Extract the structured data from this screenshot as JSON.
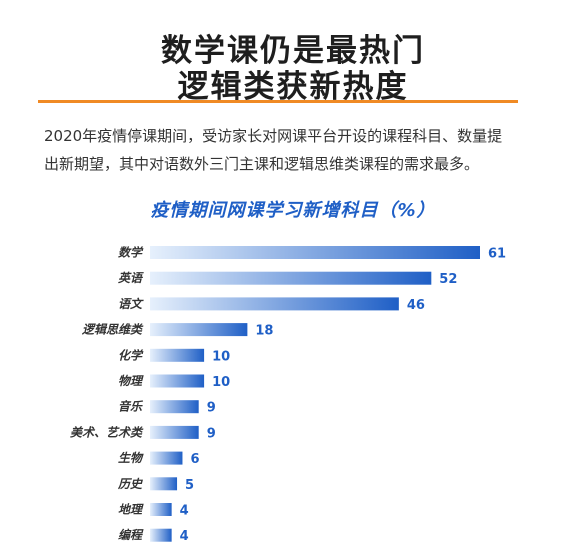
{
  "headline": {
    "line1": "数学课仍是最热门",
    "line2": "逻辑类获新热度"
  },
  "intro": {
    "line1": "2020年疫情停课期间，受访家长对网课平台开设的课程科目、数量提",
    "line2": "出新期望，其中对语数外三门主课和逻辑思维类课程的需求最多。"
  },
  "colors": {
    "accent": "#f08a24",
    "bar_start": "#e6f0fc",
    "bar_end": "#1f5fc6",
    "value": "#1f5fc6"
  },
  "chart_data": {
    "type": "bar",
    "orientation": "horizontal",
    "title": "疫情期间网课学习新增科目（%）",
    "categories": [
      "数学",
      "英语",
      "语文",
      "逻辑思维类",
      "化学",
      "物理",
      "音乐",
      "美术、艺术类",
      "生物",
      "历史",
      "地理",
      "编程"
    ],
    "values": [
      61,
      52,
      46,
      18,
      10,
      10,
      9,
      9,
      6,
      5,
      4,
      4
    ],
    "xlim": [
      0,
      61
    ],
    "grid": false,
    "legend": "none"
  }
}
